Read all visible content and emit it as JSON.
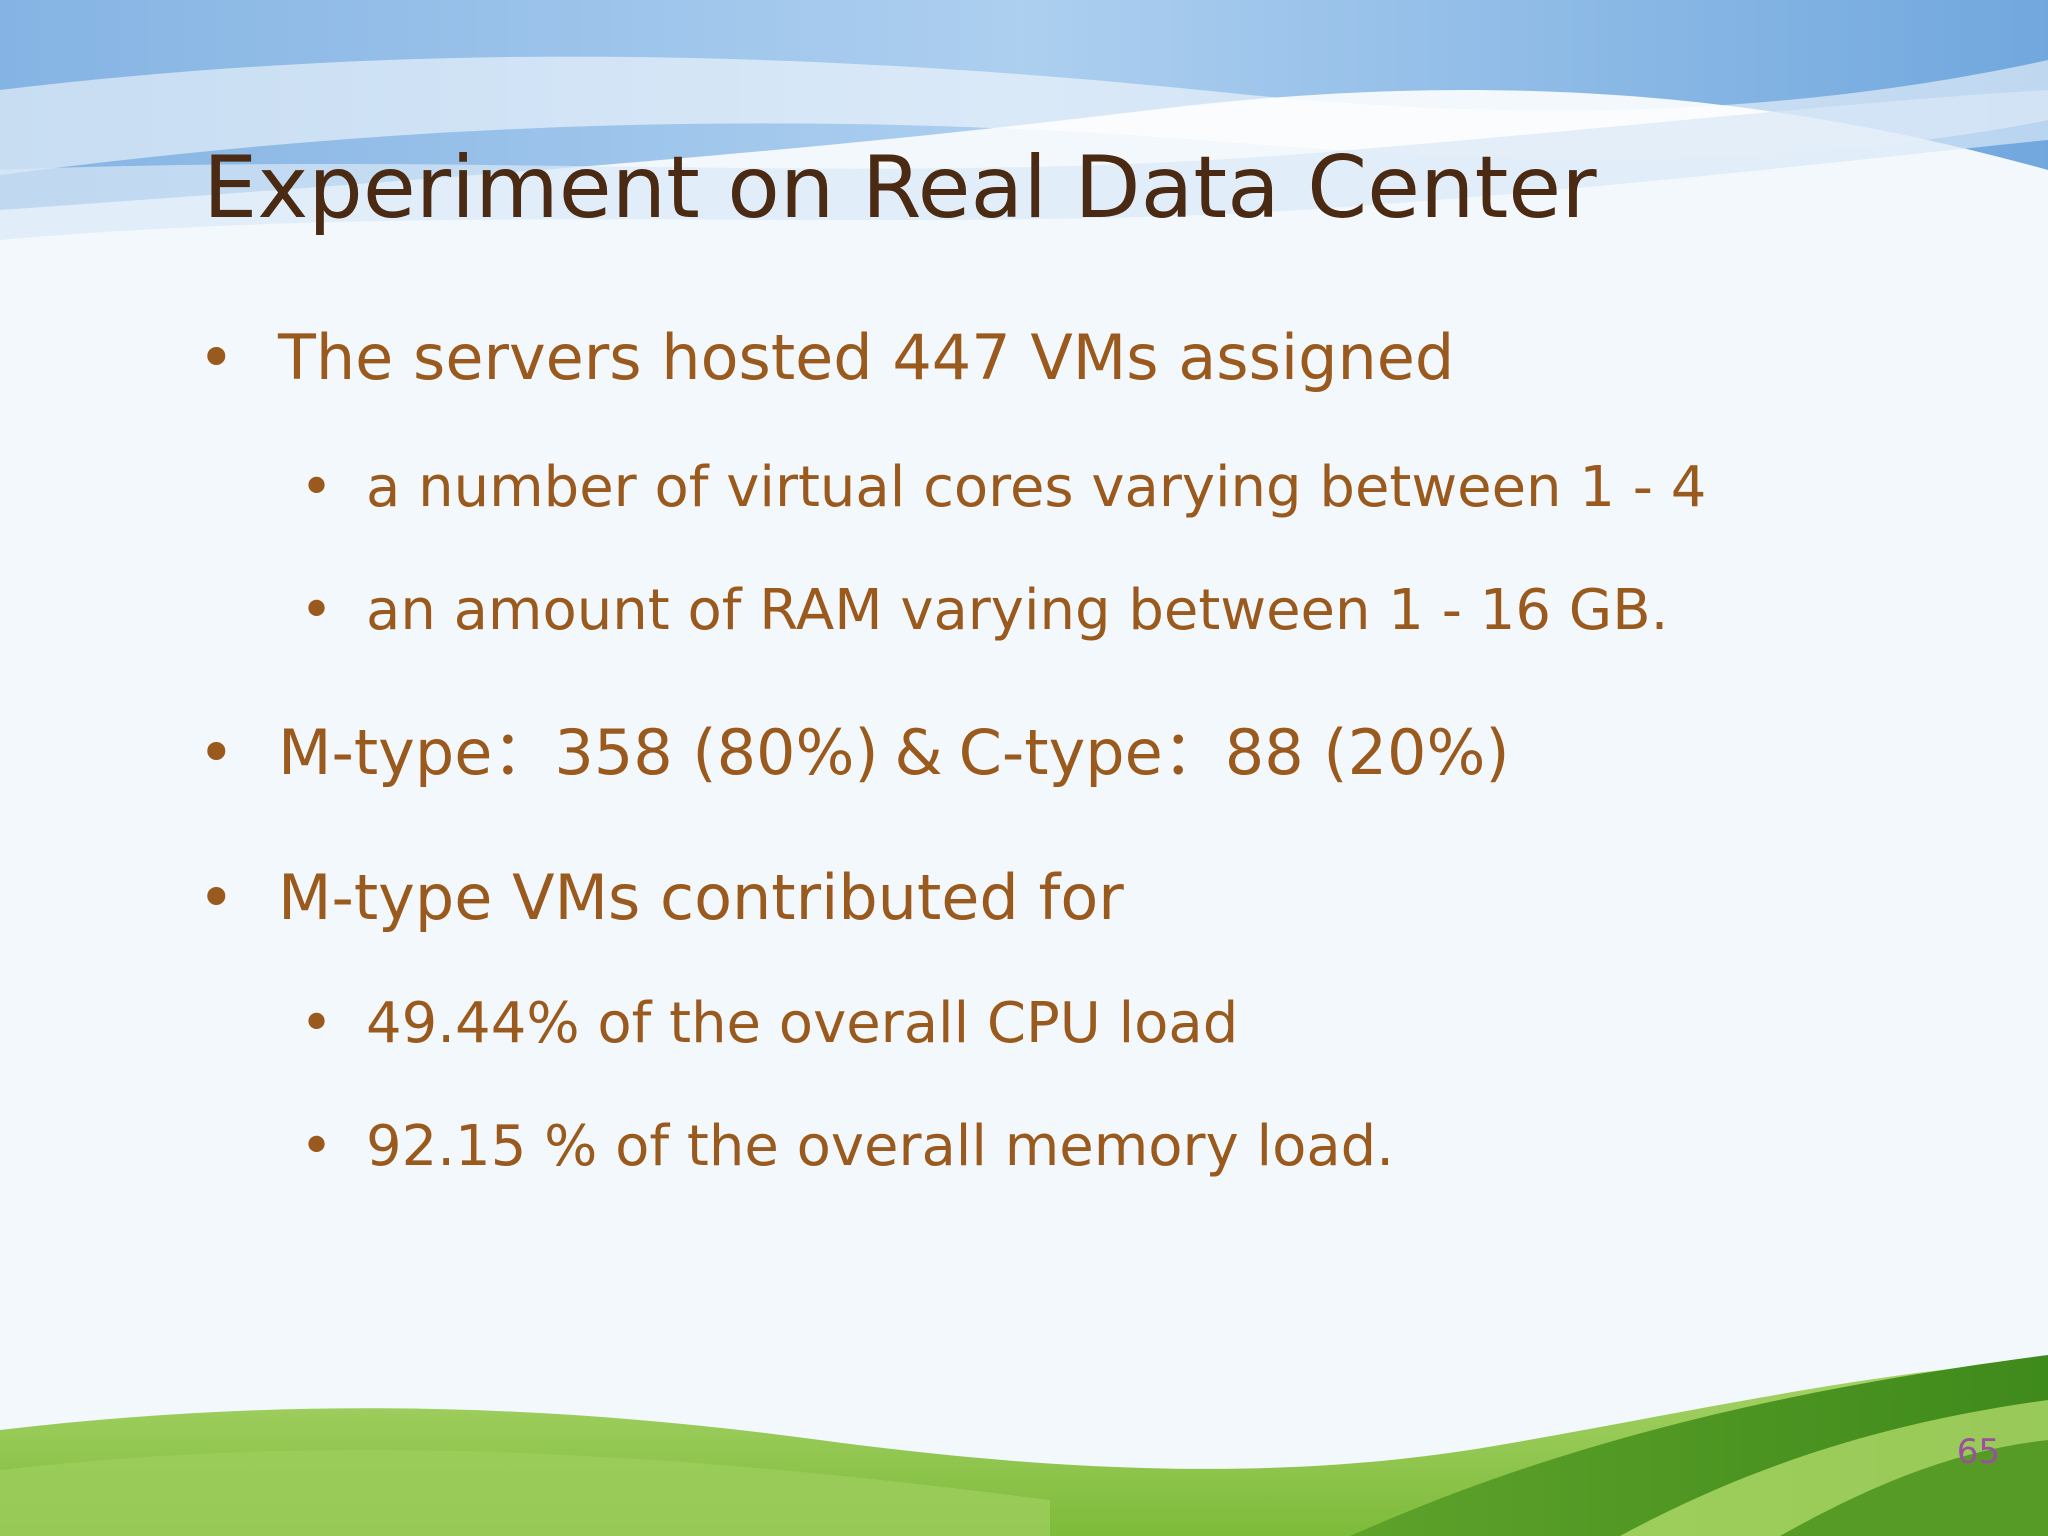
{
  "slide": {
    "title": "Experiment on Real Data Center",
    "bullet_glyph": "•",
    "items": [
      {
        "text": "The servers hosted 447 VMs assigned"
      },
      {
        "text": "a number of virtual cores varying between 1 - 4"
      },
      {
        "text": "an amount of RAM varying between 1 - 16 GB."
      },
      {
        "m_type": "M-type：358 (80%)",
        "amp": "&",
        "c_type": "C-type：88 (20%)"
      },
      {
        "text": "M-type VMs contributed for"
      },
      {
        "text": "49.44% of the overall CPU load"
      },
      {
        "text": "92.15 % of the overall memory load."
      }
    ],
    "page_number": "65"
  },
  "colors": {
    "title": "#4a2a12",
    "body": "#9a5a1e",
    "page_number": "#9a4fa0",
    "sky": "#8fb8e0",
    "grass": "#6cae2e"
  }
}
